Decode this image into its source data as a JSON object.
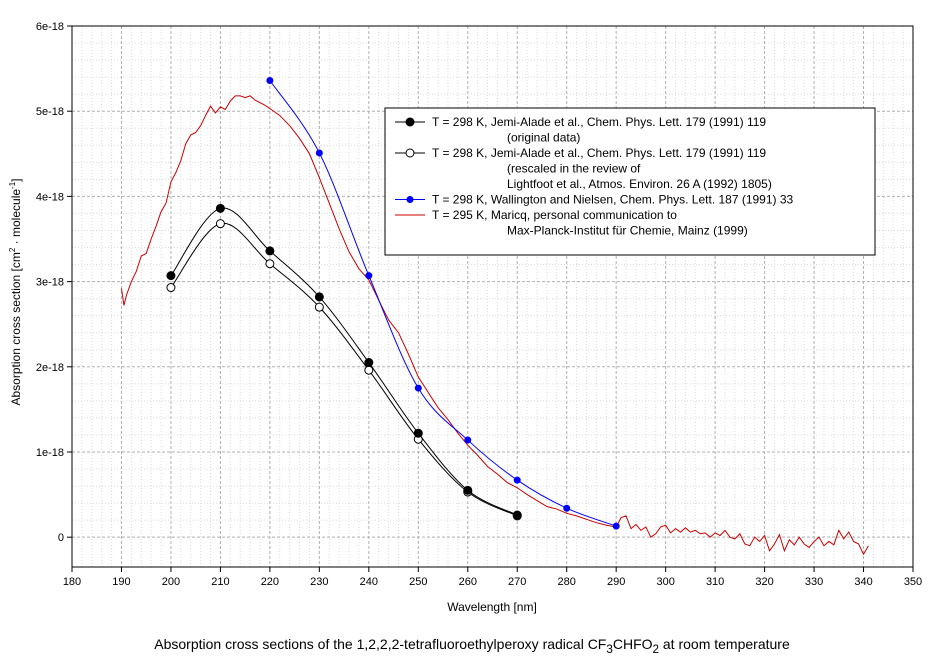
{
  "chart_data": {
    "type": "line",
    "xlabel": "Wavelength [nm]",
    "ylabel_parts": [
      "Absorption cross section [cm",
      "2",
      " · molecule",
      "-1",
      "]"
    ],
    "xlim": [
      180,
      350
    ],
    "ylim": [
      -3.5e-19,
      6e-18
    ],
    "x_ticks": [
      180,
      190,
      200,
      210,
      220,
      230,
      240,
      250,
      260,
      270,
      280,
      290,
      300,
      310,
      320,
      330,
      340,
      350
    ],
    "y_ticks": [
      {
        "value": 0,
        "label": "0"
      },
      {
        "value": 1e-18,
        "label": "1e-18"
      },
      {
        "value": 2e-18,
        "label": "2e-18"
      },
      {
        "value": 3e-18,
        "label": "3e-18"
      },
      {
        "value": 4e-18,
        "label": "4e-18"
      },
      {
        "value": 5e-18,
        "label": "5e-18"
      },
      {
        "value": 6e-18,
        "label": "6e-18"
      }
    ],
    "grid": true,
    "legend_position": "top-right",
    "series": [
      {
        "name": "T = 298 K, Jemi-Alade et al., Chem. Phys. Lett. 179 (1991) 119",
        "legend_lines": [
          "T = 298 K, Jemi-Alade et al., Chem. Phys. Lett. 179 (1991) 119",
          "(original data)"
        ],
        "color": "#000000",
        "marker": "filled-circle",
        "x": [
          200,
          210,
          220,
          230,
          240,
          250,
          260,
          270
        ],
        "y": [
          3.07e-18,
          3.86e-18,
          3.36e-18,
          2.82e-18,
          2.05e-18,
          1.22e-18,
          5.5e-19,
          2.6e-19
        ]
      },
      {
        "name": "T = 298 K, Jemi-Alade et al., Chem. Phys. Lett. 179 (1991) 119 (rescaled)",
        "legend_lines": [
          "T = 298 K, Jemi-Alade et al., Chem. Phys. Lett. 179 (1991) 119",
          "(rescaled in the review of",
          "Lightfoot et al., Atmos. Environ. 26 A (1992) 1805)"
        ],
        "color": "#000000",
        "marker": "open-circle",
        "x": [
          200,
          210,
          220,
          230,
          240,
          250,
          260,
          270
        ],
        "y": [
          2.93e-18,
          3.68e-18,
          3.21e-18,
          2.7e-18,
          1.96e-18,
          1.15e-18,
          5.3e-19,
          2.5e-19
        ]
      },
      {
        "name": "T = 298 K, Wallington and Nielsen, Chem. Phys. Lett. 187 (1991) 33",
        "legend_lines": [
          "T = 298 K, Wallington and Nielsen, Chem. Phys. Lett. 187 (1991) 33"
        ],
        "color": "#0000ff",
        "marker": "small-filled-circle",
        "x": [
          220,
          230,
          240,
          250,
          260,
          270,
          280,
          290
        ],
        "y": [
          5.36e-18,
          4.51e-18,
          3.07e-18,
          1.75e-18,
          1.14e-18,
          6.7e-19,
          3.4e-19,
          1.3e-19
        ]
      },
      {
        "name": "T = 295 K, Maricq, personal communication to Max-Planck-Institut für Chemie, Mainz (1999)",
        "legend_lines": [
          "T = 295 K, Maricq, personal communication to",
          "Max-Planck-Institut für Chemie, Mainz (1999)"
        ],
        "color": "#cc0000",
        "marker": "none",
        "x": [
          190,
          190.5,
          191,
          192,
          193,
          194,
          195,
          196,
          197,
          198,
          199,
          200,
          201,
          202,
          203,
          204,
          205,
          206,
          207,
          208,
          209,
          210,
          211,
          212,
          213,
          214,
          215,
          216,
          217,
          218,
          219,
          220,
          222,
          224,
          226,
          228,
          230,
          232,
          234,
          236,
          238,
          240,
          242,
          244,
          246,
          248,
          250,
          252,
          254,
          256,
          258,
          260,
          262,
          264,
          266,
          268,
          270,
          272,
          274,
          276,
          278,
          280,
          282,
          284,
          286,
          288,
          290,
          291,
          292,
          293,
          294,
          295,
          296,
          297,
          298,
          299,
          300,
          301,
          302,
          303,
          304,
          305,
          306,
          307,
          308,
          309,
          310,
          311,
          312,
          313,
          314,
          315,
          316,
          317,
          318,
          319,
          320,
          321,
          322,
          323,
          324,
          325,
          326,
          327,
          328,
          329,
          330,
          331,
          332,
          333,
          334,
          335,
          336,
          337,
          338,
          339,
          340,
          341
        ],
        "y": [
          2.92e-18,
          2.72e-18,
          2.84e-18,
          3e-18,
          3.12e-18,
          3.3e-18,
          3.33e-18,
          3.5e-18,
          3.65e-18,
          3.82e-18,
          3.92e-18,
          4.17e-18,
          4.28e-18,
          4.42e-18,
          4.62e-18,
          4.72e-18,
          4.75e-18,
          4.83e-18,
          4.95e-18,
          5.06e-18,
          4.98e-18,
          5.05e-18,
          5.02e-18,
          5.12e-18,
          5.18e-18,
          5.18e-18,
          5.16e-18,
          5.18e-18,
          5.13e-18,
          5.1e-18,
          5.07e-18,
          5.03e-18,
          4.95e-18,
          4.83e-18,
          4.68e-18,
          4.5e-18,
          4.22e-18,
          3.92e-18,
          3.62e-18,
          3.35e-18,
          3.15e-18,
          3.02e-18,
          2.78e-18,
          2.55e-18,
          2.4e-18,
          2.15e-18,
          1.88e-18,
          1.7e-18,
          1.52e-18,
          1.38e-18,
          1.22e-18,
          1.08e-18,
          9.6e-19,
          8.3e-19,
          7.4e-19,
          6.4e-19,
          5.8e-19,
          5e-19,
          4.3e-19,
          3.6e-19,
          3.3e-19,
          2.8e-19,
          2.5e-19,
          2.1e-19,
          1.7e-19,
          1.4e-19,
          1.2e-19,
          2.3e-19,
          2.5e-19,
          1e-19,
          1.5e-19,
          8e-20,
          1.2e-19,
          0.0,
          4e-20,
          1.2e-19,
          1.4e-19,
          5e-20,
          1e-19,
          6e-20,
          1.1e-19,
          6e-20,
          8e-20,
          4e-20,
          5e-20,
          0.0,
          5e-20,
          2e-20,
          8e-20,
          0.0,
          -2e-20,
          4e-20,
          -8e-20,
          -1e-19,
          0.0,
          -5e-20,
          2e-20,
          -1.6e-19,
          -8e-20,
          3e-20,
          -1.6e-19,
          -3e-20,
          -9e-20,
          0.0,
          -8e-20,
          -1.2e-19,
          -5e-20,
          0.0,
          -1e-19,
          -5e-20,
          -9e-20,
          8e-20,
          -2e-20,
          6e-20,
          -5e-20,
          -8e-20,
          -2e-19,
          -1e-19
        ]
      }
    ]
  },
  "caption": {
    "prefix": "Absorption cross sections of the 1,2,2,2-tetrafluoroethylperoxy radical CF",
    "sub1": "3",
    "middle": "CHFO",
    "sub2": "2",
    "suffix": " at room temperature"
  }
}
